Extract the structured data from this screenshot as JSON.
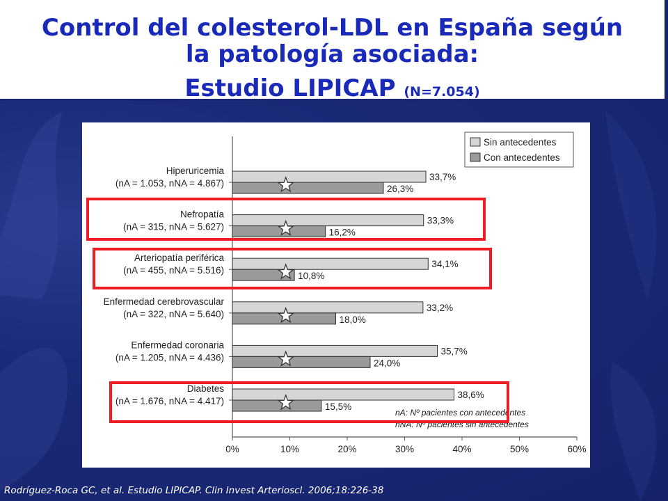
{
  "slide": {
    "title_line1": "Control del colesterol-LDL en España según",
    "title_line2": "la patología asociada:",
    "title_line3": "Estudio LIPICAP",
    "title_n": "(N=7.054)",
    "citation": "Rodríguez-Roca GC, et al. Estudio LIPICAP. Clin Invest Arterioscl. 2006;18:226-38"
  },
  "chart_data": {
    "type": "bar",
    "orientation": "horizontal",
    "xlim": [
      0,
      60
    ],
    "x_ticks": [
      "0%",
      "10%",
      "20%",
      "30%",
      "40%",
      "50%",
      "60%"
    ],
    "grid": false,
    "legend_position": "top-right",
    "categories": [
      {
        "name": "Hiperuricemia",
        "counts": "(nA = 1.053, nNA = 4.867)",
        "highlighted": false
      },
      {
        "name": "Nefropatía",
        "counts": "(nA = 315, nNA = 5.627)",
        "highlighted": true
      },
      {
        "name": "Arteriopatía periférica",
        "counts": "(nA = 455, nNA = 5.516)",
        "highlighted": true
      },
      {
        "name": "Enfermedad cerebrovascular",
        "counts": "(nA = 322, nNA = 5.640)",
        "highlighted": false
      },
      {
        "name": "Enfermedad coronaria",
        "counts": "(nA = 1.205, nNA = 4.436)",
        "highlighted": false
      },
      {
        "name": "Diabetes",
        "counts": "(nA = 1.676, nNA = 4.417)",
        "highlighted": true
      }
    ],
    "series": [
      {
        "name": "Sin antecedentes",
        "color": "#d6d6d6",
        "values": [
          33.7,
          33.3,
          34.1,
          33.2,
          35.7,
          38.6
        ],
        "labels": [
          "33,7%",
          "33,3%",
          "34,1%",
          "33,2%",
          "35,7%",
          "38,6%"
        ]
      },
      {
        "name": "Con antecedentes",
        "color": "#9a9a9a",
        "values": [
          26.3,
          16.2,
          10.8,
          18.0,
          24.0,
          15.5
        ],
        "labels": [
          "26,3%",
          "16,2%",
          "10,8%",
          "18,0%",
          "24,0%",
          "15,5%"
        ]
      }
    ],
    "significance_marker": "☆",
    "notes": [
      "nA: Nº pacientes con antecedentes",
      "nNA: Nº pacientes sin antecedentes"
    ],
    "highlight_color": "#ee1c24"
  }
}
